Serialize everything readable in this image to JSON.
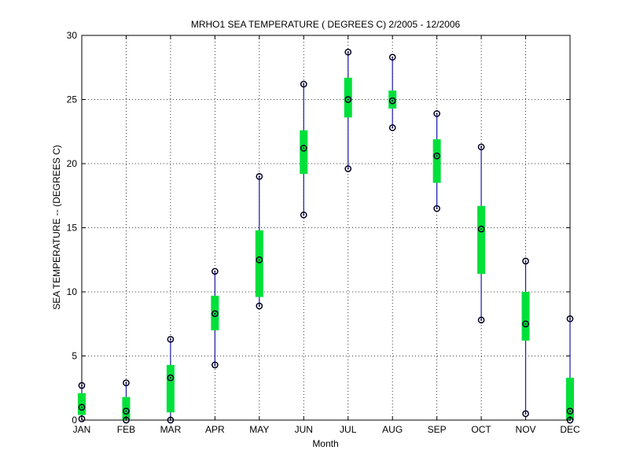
{
  "chart_data": {
    "type": "box",
    "title": "MRHO1  SEA TEMPERATURE ( DEGREES C) 2/2005 - 12/2006",
    "xlabel": "Month",
    "ylabel": "SEA TEMPERATURE -- (DEGREES C)",
    "categories": [
      "JAN",
      "FEB",
      "MAR",
      "APR",
      "MAY",
      "JUN",
      "JUL",
      "AUG",
      "SEP",
      "OCT",
      "NOV",
      "DEC"
    ],
    "ylim": [
      0,
      30
    ],
    "yticks": [
      "0",
      "5",
      "10",
      "15",
      "20",
      "25",
      "30"
    ],
    "grid": true,
    "series": [
      {
        "min": [
          0.1,
          0.0,
          0.0,
          4.3,
          8.9,
          16.0,
          19.6,
          22.8,
          16.5,
          7.8,
          0.5,
          0.0
        ],
        "q1": [
          0.4,
          0.0,
          0.6,
          7.0,
          9.6,
          19.2,
          23.6,
          24.3,
          18.5,
          11.4,
          6.2,
          0.0
        ],
        "median": [
          1.0,
          0.7,
          3.3,
          8.3,
          12.5,
          21.2,
          25.0,
          24.9,
          20.6,
          14.9,
          7.5,
          0.7
        ],
        "q3": [
          2.1,
          1.8,
          4.3,
          9.7,
          14.8,
          22.6,
          26.7,
          25.7,
          21.9,
          16.7,
          10.0,
          3.3
        ],
        "max": [
          2.7,
          2.9,
          6.3,
          11.6,
          19.0,
          26.2,
          28.7,
          28.3,
          23.9,
          21.3,
          12.4,
          7.9
        ]
      }
    ],
    "colors": {
      "box": "#00e03a",
      "whisker": "#1a1aa8",
      "marker": "#000020"
    }
  }
}
